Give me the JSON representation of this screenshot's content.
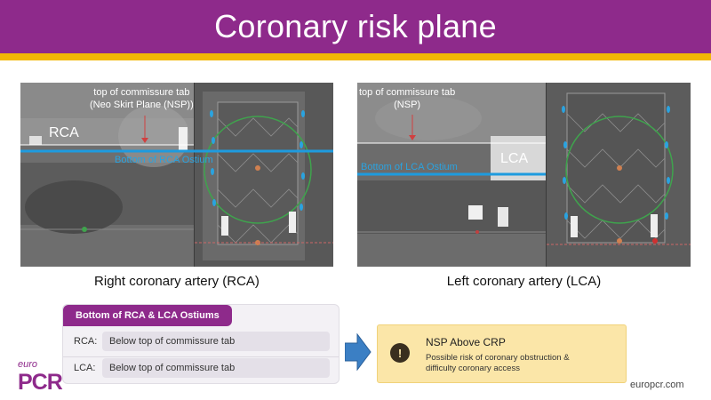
{
  "slide": {
    "title": "Coronary risk plane"
  },
  "left_panel": {
    "annotation_line1": "top of commissure tab",
    "annotation_line2": "(Neo Skirt Plane (NSP))",
    "vessel_label": "RCA",
    "ostium_label": "Bottom of RCA Ostium",
    "caption": "Right coronary artery (RCA)"
  },
  "right_panel": {
    "annotation_line1": "top of commissure tab",
    "annotation_line2": "(NSP)",
    "vessel_label": "LCA",
    "ostium_label": "Bottom of LCA Ostium",
    "caption": "Left coronary artery (LCA)"
  },
  "ostium_table": {
    "header": "Bottom of RCA & LCA Ostiums",
    "rows": [
      {
        "label": "RCA:",
        "value": "Below top of commissure tab"
      },
      {
        "label": "LCA:",
        "value": "Below top of commissure tab"
      }
    ]
  },
  "result": {
    "icon": "alert-circle-icon",
    "title": "NSP Above CRP",
    "line1": "Possible risk of coronary obstruction &",
    "line2": "difficulty coronary access"
  },
  "branding": {
    "logo_small": "euro",
    "logo_large": "PCR",
    "url": "europcr.com"
  },
  "colors": {
    "brand_purple": "#8e2a8b",
    "accent_yellow": "#f2b705",
    "ostium_blue": "#2aa3e0",
    "result_background": "#fbe6a8",
    "arrow_blue": "#3b7fc4"
  }
}
